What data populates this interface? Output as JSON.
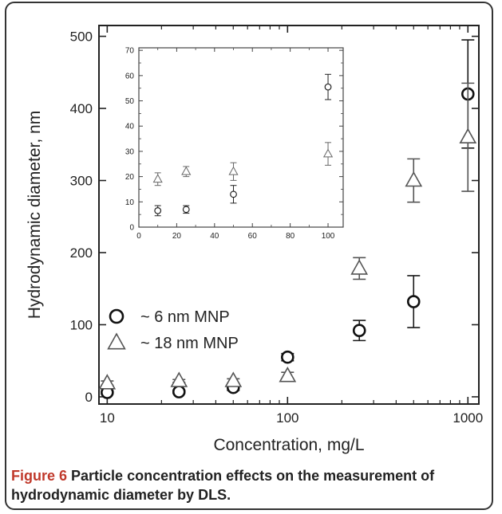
{
  "chart_data": [
    {
      "type": "scatter",
      "title": "",
      "xlabel": "Concentration, mg/L",
      "ylabel": "Hydrodynamic diameter, nm",
      "xscale": "log",
      "xlim": [
        9,
        1150
      ],
      "ylim": [
        -10,
        515
      ],
      "xticks": [
        10,
        100,
        1000
      ],
      "yticks": [
        0,
        100,
        200,
        300,
        400,
        500
      ],
      "grid": false,
      "legend_placement": "left",
      "series": [
        {
          "name": "~ 6 nm MNP",
          "marker": "circle",
          "x": [
            10,
            25,
            50,
            100,
            250,
            500,
            1000
          ],
          "y": [
            6,
            7,
            13,
            55,
            92,
            132,
            420
          ],
          "yerr": [
            2,
            2,
            4,
            5,
            14,
            36,
            75
          ]
        },
        {
          "name": "~ 18 nm MNP",
          "marker": "triangle",
          "x": [
            10,
            25,
            50,
            100,
            250,
            500,
            1000
          ],
          "y": [
            19,
            22,
            22,
            29,
            178,
            300,
            360
          ],
          "yerr": [
            3,
            2,
            3,
            5,
            15,
            30,
            75
          ]
        }
      ]
    },
    {
      "type": "scatter",
      "title": "",
      "xlabel": "",
      "ylabel": "",
      "xlim": [
        0,
        108
      ],
      "ylim": [
        0,
        71
      ],
      "xticks": [
        0,
        20,
        40,
        60,
        80,
        100
      ],
      "yticks": [
        0,
        10,
        20,
        30,
        40,
        50,
        60,
        70
      ],
      "grid": false,
      "series": [
        {
          "marker": "circle",
          "x": [
            10,
            25,
            50,
            100
          ],
          "y": [
            6.5,
            7,
            13,
            55.5
          ],
          "yerr": [
            2,
            1.5,
            3.5,
            5
          ]
        },
        {
          "marker": "triangle",
          "x": [
            10,
            25,
            50,
            100
          ],
          "y": [
            19,
            22,
            22,
            29
          ],
          "yerr": [
            2.5,
            2,
            3.5,
            4.5
          ]
        }
      ]
    }
  ],
  "caption": {
    "label": "Figure 6",
    "text": "Particle concentration effects on the measurement of hydrodynamic diameter by DLS."
  }
}
